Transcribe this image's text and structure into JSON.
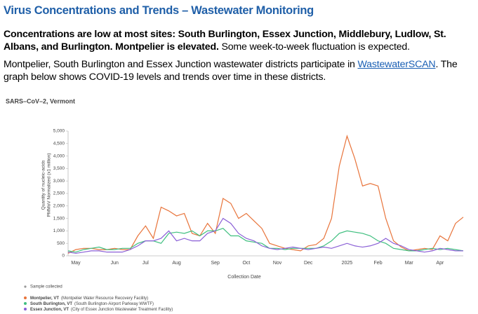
{
  "header": {
    "title": "Virus Concentrations and Trends – Wastewater Monitoring"
  },
  "paragraphs": [
    {
      "bold": "Concentrations are low at most sites: South Burlington, Essex Junction, Middlebury, Ludlow, St. Albans, and Burlington. Montpelier is elevated.",
      "text": "Some week-to-week fluctuation is expected."
    },
    {
      "text_before": "Montpelier, South Burlington and Essex Junction wastewater districts participate in",
      "link": "WastewaterSCAN",
      "text_after": ". The graph below shows COVID-19 levels and trends over time in these districts."
    }
  ],
  "chart_data": {
    "type": "line",
    "title": "SARS–CoV–2, Vermont",
    "x_label": "Collection Date",
    "y_label": [
      "Quantity of nucleic-acids",
      "PMMoV Normalized (x1 million)"
    ],
    "categories": [
      null,
      "May",
      null,
      null,
      null,
      null,
      "Jun",
      null,
      null,
      null,
      "Jul",
      null,
      null,
      null,
      "Aug",
      null,
      null,
      null,
      null,
      "Sep",
      null,
      null,
      null,
      "Oct",
      null,
      null,
      null,
      "Nov",
      null,
      null,
      null,
      "Dec",
      null,
      null,
      null,
      null,
      "2025",
      null,
      null,
      null,
      "Feb",
      null,
      null,
      null,
      "Mar",
      null,
      null,
      null,
      "Apr",
      null,
      null,
      null
    ],
    "ylim": [
      0,
      5000
    ],
    "yticks": [
      0,
      500,
      {
        "value": 1000,
        "label": "1,000"
      },
      {
        "value": 1500,
        "label": "1,500"
      },
      {
        "value": 2000,
        "label": "2,000"
      },
      {
        "value": 2500,
        "label": "2,500"
      },
      {
        "value": 3000,
        "label": "3,000"
      },
      {
        "value": 3500,
        "label": "3,500"
      },
      {
        "value": 4000,
        "label": "4,000"
      },
      {
        "value": 4500,
        "label": "4,500"
      },
      {
        "value": 5000,
        "label": "5,000"
      }
    ],
    "grid": false,
    "legend_extra": "Sample collected",
    "series": [
      {
        "name": "Montpelier, VT",
        "description": "(Montpelier Water Resource Recovery Facility)",
        "color": "#e8743b",
        "values": [
          100,
          250,
          300,
          300,
          250,
          250,
          300,
          250,
          250,
          800,
          1200,
          700,
          1950,
          1800,
          1600,
          1700,
          900,
          800,
          1300,
          900,
          2300,
          2100,
          1500,
          1700,
          1400,
          1100,
          500,
          400,
          300,
          250,
          200,
          400,
          450,
          700,
          1500,
          3600,
          4800,
          3900,
          2800,
          2900,
          2800,
          1500,
          600,
          350,
          200,
          250,
          300,
          250,
          800,
          600,
          1300,
          1550
        ]
      },
      {
        "name": "South Burlington, VT",
        "description": "(South Burlington-Airport Parkway WWTF)",
        "color": "#3fbf7f",
        "values": [
          200,
          150,
          250,
          300,
          350,
          250,
          250,
          300,
          300,
          500,
          600,
          600,
          500,
          900,
          950,
          900,
          1000,
          800,
          1000,
          1000,
          1100,
          800,
          800,
          600,
          550,
          500,
          300,
          300,
          250,
          300,
          300,
          300,
          300,
          400,
          600,
          900,
          1000,
          950,
          900,
          800,
          600,
          500,
          300,
          250,
          200,
          200,
          250,
          300,
          250,
          300,
          250,
          200
        ]
      },
      {
        "name": "Essex Junction, VT",
        "description": "(City of Essex Junction Wastewater Treatment Facility)",
        "color": "#8a5fd6",
        "values": [
          150,
          100,
          150,
          200,
          200,
          150,
          150,
          150,
          250,
          400,
          600,
          600,
          700,
          1000,
          600,
          700,
          600,
          600,
          900,
          1000,
          1500,
          1300,
          900,
          700,
          600,
          400,
          300,
          250,
          300,
          350,
          300,
          250,
          300,
          350,
          300,
          400,
          500,
          400,
          350,
          400,
          500,
          700,
          500,
          400,
          250,
          200,
          150,
          200,
          300,
          250,
          200,
          200
        ]
      }
    ]
  }
}
